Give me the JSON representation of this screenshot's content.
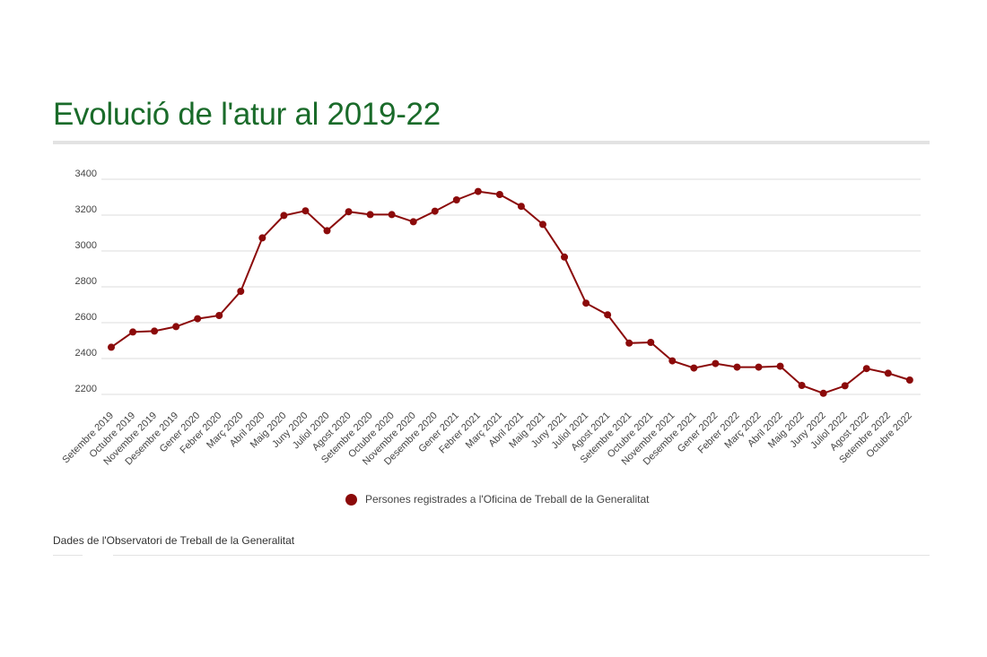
{
  "page": {
    "title": "Evolució de l'atur al 2019-22",
    "source_note": "Dades de l'Observatori de Treball de la Generalitat"
  },
  "colors": {
    "title": "#1a6b2a",
    "series": "#8b0a0a",
    "grid": "#dddddd",
    "rule": "#e3e3e3"
  },
  "legend": {
    "label": "Persones registrades a l'Oficina de Treball de la Generalitat",
    "marker": "filled-circle",
    "placement": "bottom-center"
  },
  "chart_data": {
    "type": "line",
    "title": "Evolució de l'atur al 2019-22",
    "xlabel": "",
    "ylabel": "",
    "ylim": [
      2100,
      3400
    ],
    "yticks": [
      2200,
      2400,
      2600,
      2800,
      3000,
      3200,
      3400
    ],
    "grid": true,
    "categories": [
      "Setembre 2019",
      "Octubre 2019",
      "Novembre 2019",
      "Desembre 2019",
      "Gener 2020",
      "Febrer 2020",
      "Març 2020",
      "Abril 2020",
      "Maig 2020",
      "Juny 2020",
      "Juliol 2020",
      "Agost 2020",
      "Setembre 2020",
      "Octubre 2020",
      "Novembre 2020",
      "Desembre 2020",
      "Gener 2021",
      "Febrer 2021",
      "Març 2021",
      "Abril 2021",
      "Maig 2021",
      "Juny 2021",
      "Juliol 2021",
      "Agost 2021",
      "Setembre 2021",
      "Octubre 2021",
      "Novembre 2021",
      "Desembre 2021",
      "Gener 2022",
      "Febrer 2022",
      "Març 2022",
      "Abril 2022",
      "Maig 2022",
      "Juny 2022",
      "Juliol 2022",
      "Agost 2022",
      "Setembre 2022",
      "Octubre 2022"
    ],
    "series": [
      {
        "name": "Persones registrades a l'Oficina de Treball de la Generalitat",
        "color": "#8b0a0a",
        "values": [
          2463,
          2548,
          2553,
          2578,
          2622,
          2640,
          2775,
          3073,
          3198,
          3224,
          3113,
          3219,
          3203,
          3203,
          3163,
          3222,
          3285,
          3332,
          3315,
          3249,
          3148,
          2966,
          2709,
          2644,
          2486,
          2490,
          2387,
          2347,
          2372,
          2352,
          2352,
          2357,
          2250,
          2206,
          2248,
          2344,
          2318,
          2280
        ]
      }
    ]
  }
}
